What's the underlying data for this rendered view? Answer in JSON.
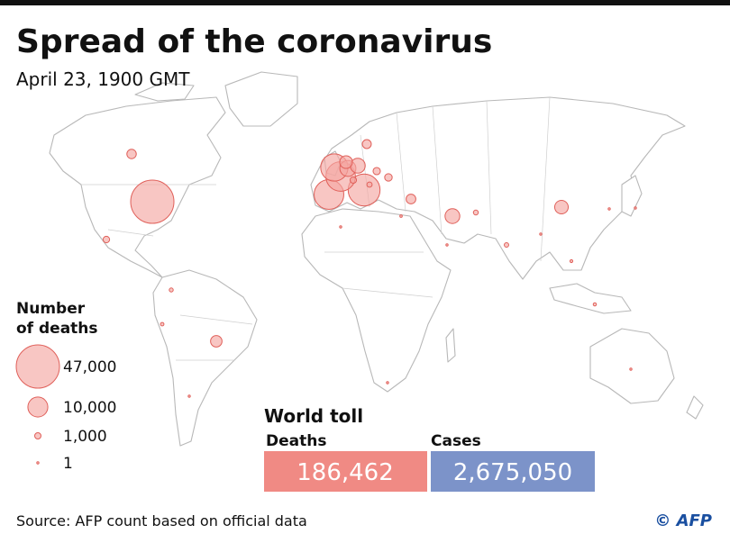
{
  "header": {
    "title": "Spread of the coronavirus",
    "subtitle": "April 23, 1900 GMT"
  },
  "legend": {
    "title_lines": [
      "Number",
      "of deaths"
    ],
    "items": [
      {
        "value": 47000,
        "label": "47,000"
      },
      {
        "value": 10000,
        "label": "10,000"
      },
      {
        "value": 1000,
        "label": "1,000"
      },
      1
    ]
  },
  "map_bubbles": [
    47000,
    25549,
    22157,
    21856,
    18738,
    6490,
    5575,
    4054,
    5481,
    2376,
    4632,
    3313,
    2238,
    2021,
    1069,
    1425,
    1340,
    1035,
    700,
    600,
    500,
    400,
    300,
    250,
    200,
    150,
    100,
    80,
    60,
    40,
    30,
    20,
    10,
    5
  ],
  "toll": {
    "title": "World toll",
    "deaths_label": "Deaths",
    "deaths": {
      "value": 186462,
      "label": "186,462"
    },
    "cases_label": "Cases",
    "cases": {
      "value": 2675050,
      "label": "2,675,050"
    }
  },
  "footer": {
    "source": "Source: AFP count based on official data",
    "credit": "© AFP"
  }
}
